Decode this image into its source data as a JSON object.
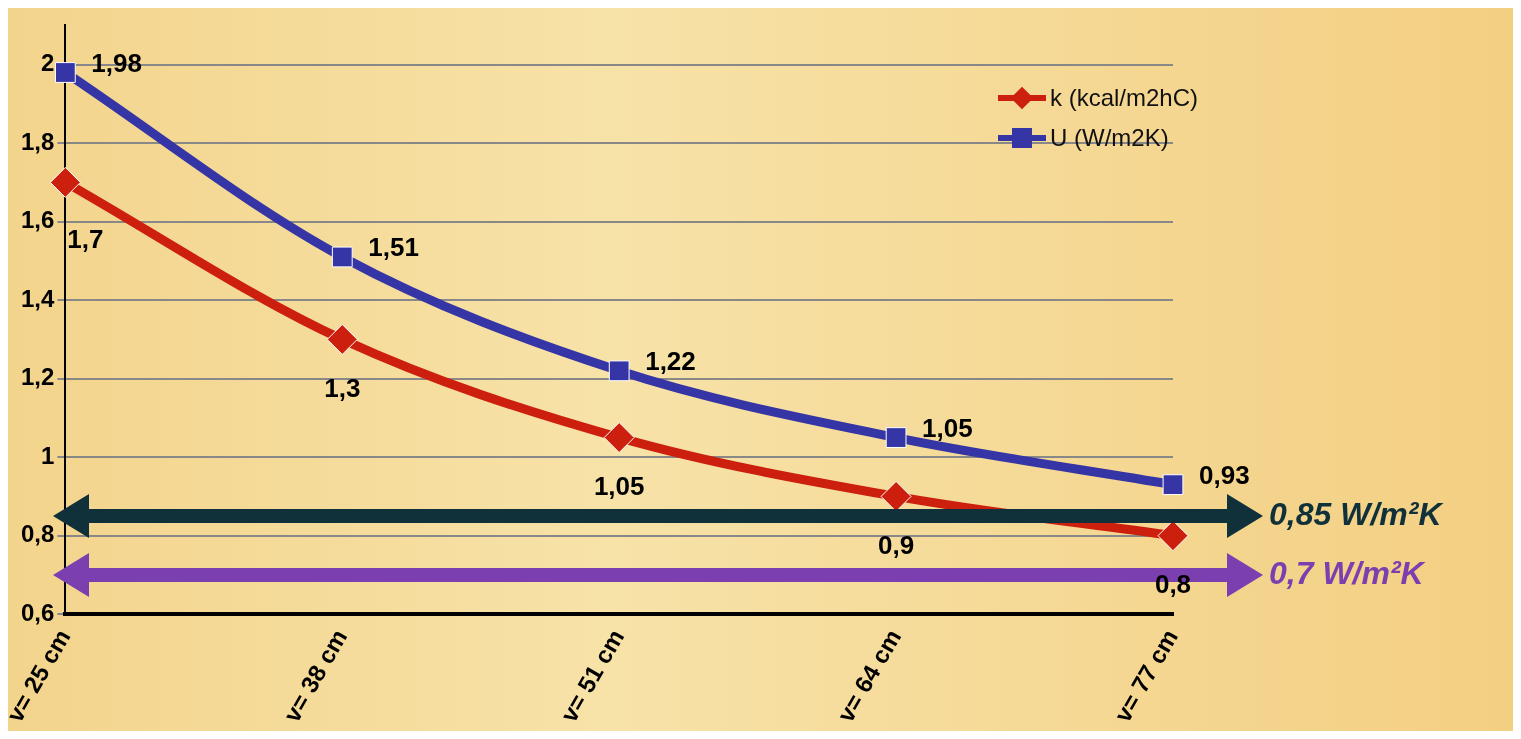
{
  "chart_data": {
    "type": "line",
    "categories": [
      "v= 25 cm",
      "v= 38 cm",
      "v= 51 cm",
      "v= 64 cm",
      "v= 77 cm"
    ],
    "series": [
      {
        "name": "k (kcal/m2hC)",
        "color": "#cc1f0e",
        "marker": "diamond",
        "values": [
          1.7,
          1.3,
          1.05,
          0.9,
          0.8
        ],
        "value_labels": [
          "1,7",
          "1,3",
          "1,05",
          "0,9",
          "0,8"
        ]
      },
      {
        "name": "U (W/m2K)",
        "color": "#3535a5",
        "marker": "square",
        "values": [
          1.98,
          1.51,
          1.22,
          1.05,
          0.93
        ],
        "value_labels": [
          "1,98",
          "1,51",
          "1,22",
          "1,05",
          "0,93"
        ]
      }
    ],
    "ylim": [
      0.6,
      2.1
    ],
    "yticks": [
      {
        "value": 0.6,
        "label": "0,6"
      },
      {
        "value": 0.8,
        "label": "0,8"
      },
      {
        "value": 1,
        "label": "1"
      },
      {
        "value": 1.2,
        "label": "1,2"
      },
      {
        "value": 1.4,
        "label": "1,4"
      },
      {
        "value": 1.6,
        "label": "1,6"
      },
      {
        "value": 1.8,
        "label": "1,8"
      },
      {
        "value": 2,
        "label": "2"
      }
    ],
    "grid": "y",
    "legend": "top right",
    "ref_lines": [
      {
        "axis": "y",
        "value": 0.85,
        "label": "0,85 W/m²K",
        "color": "#10303a"
      },
      {
        "axis": "y",
        "value": 0.7,
        "label": "0,7 W/m²K",
        "color": "#7b3fb0"
      }
    ]
  }
}
